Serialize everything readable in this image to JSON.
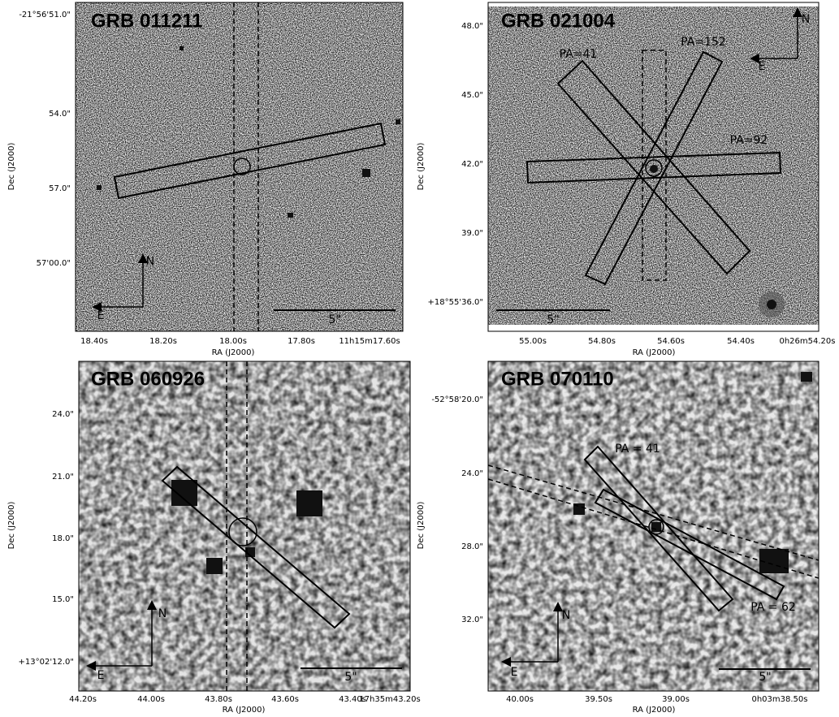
{
  "panels": [
    {
      "title": "GRB 011211",
      "x_axis_label": "RA (J2000)",
      "y_axis_label": "Dec (J2000)",
      "xticks": [
        "18.40s",
        "18.20s",
        "18.00s",
        "17.80s",
        "11h15m17.60s"
      ],
      "yticks": [
        "-21°56'51.0\"",
        "54.0\"",
        "57.0\"",
        "57'00.0\""
      ],
      "scale_label": "5\"",
      "north_label": "N",
      "east_label": "E",
      "annotations": []
    },
    {
      "title": "GRB 021004",
      "x_axis_label": "RA (J2000)",
      "y_axis_label": "Dec (J2000)",
      "xticks": [
        "55.00s",
        "54.80s",
        "54.60s",
        "54.40s",
        "0h26m54.20s"
      ],
      "yticks": [
        "48.0\"",
        "45.0\"",
        "42.0\"",
        "39.0\"",
        "+18°55'36.0\""
      ],
      "scale_label": "5\"",
      "north_label": "N",
      "east_label": "E",
      "annotations": [
        "PA=41",
        "PA=152",
        "PA=92"
      ]
    },
    {
      "title": "GRB 060926",
      "x_axis_label": "RA (J2000)",
      "y_axis_label": "Dec (J2000)",
      "xticks": [
        "44.20s",
        "44.00s",
        "43.80s",
        "43.60s",
        "43.40s",
        "17h35m43.20s"
      ],
      "yticks": [
        "24.0\"",
        "21.0\"",
        "18.0\"",
        "15.0\"",
        "+13°02'12.0\""
      ],
      "scale_label": "5\"",
      "north_label": "N",
      "east_label": "E",
      "annotations": []
    },
    {
      "title": "GRB 070110",
      "x_axis_label": "RA (J2000)",
      "y_axis_label": "Dec (J2000)",
      "xticks": [
        "40.00s",
        "39.50s",
        "39.00s",
        "0h03m38.50s"
      ],
      "yticks": [
        "-52°58'20.0\"",
        "24.0\"",
        "28.0\"",
        "32.0\""
      ],
      "scale_label": "5\"",
      "north_label": "N",
      "east_label": "E",
      "annotations": [
        "PA = 41",
        "PA = 62"
      ]
    }
  ]
}
